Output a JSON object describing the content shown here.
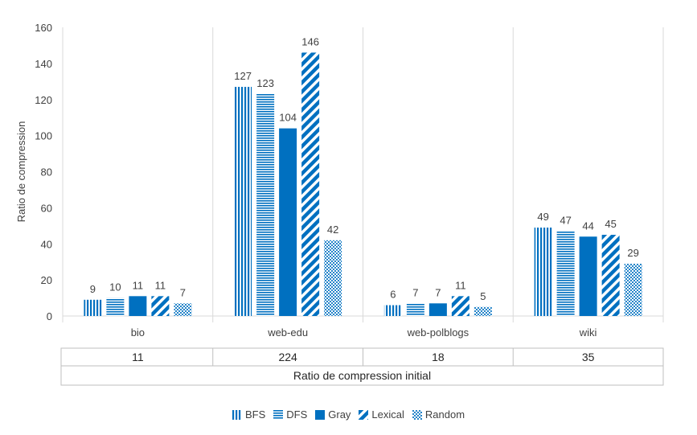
{
  "chart_data": {
    "type": "bar",
    "ylabel": "Ratio de compression",
    "ylim": [
      0,
      160
    ],
    "yticks": [
      0,
      20,
      40,
      60,
      80,
      100,
      120,
      140,
      160
    ],
    "categories": [
      "bio",
      "web-edu",
      "web-polblogs",
      "wiki"
    ],
    "series": [
      {
        "name": "BFS",
        "pattern": "vertical-lines",
        "values": [
          9,
          127,
          6,
          49
        ]
      },
      {
        "name": "DFS",
        "pattern": "horizontal-lines",
        "values": [
          10,
          123,
          7,
          47
        ]
      },
      {
        "name": "Gray",
        "pattern": "solid",
        "values": [
          11,
          104,
          7,
          44
        ]
      },
      {
        "name": "Lexical",
        "pattern": "diagonal-stripes",
        "values": [
          11,
          146,
          11,
          45
        ]
      },
      {
        "name": "Random",
        "pattern": "crosshatch",
        "values": [
          7,
          42,
          5,
          29
        ]
      }
    ],
    "table_title": "Ratio de compression initial",
    "table_values": [
      "11",
      "224",
      "18",
      "35"
    ],
    "grid": "vertical category separators",
    "legend_position": "bottom",
    "colors": {
      "bar": "#0070c0",
      "text": "#404040",
      "axis": "#d9d9d9",
      "table_border": "#bfbfbf"
    }
  }
}
